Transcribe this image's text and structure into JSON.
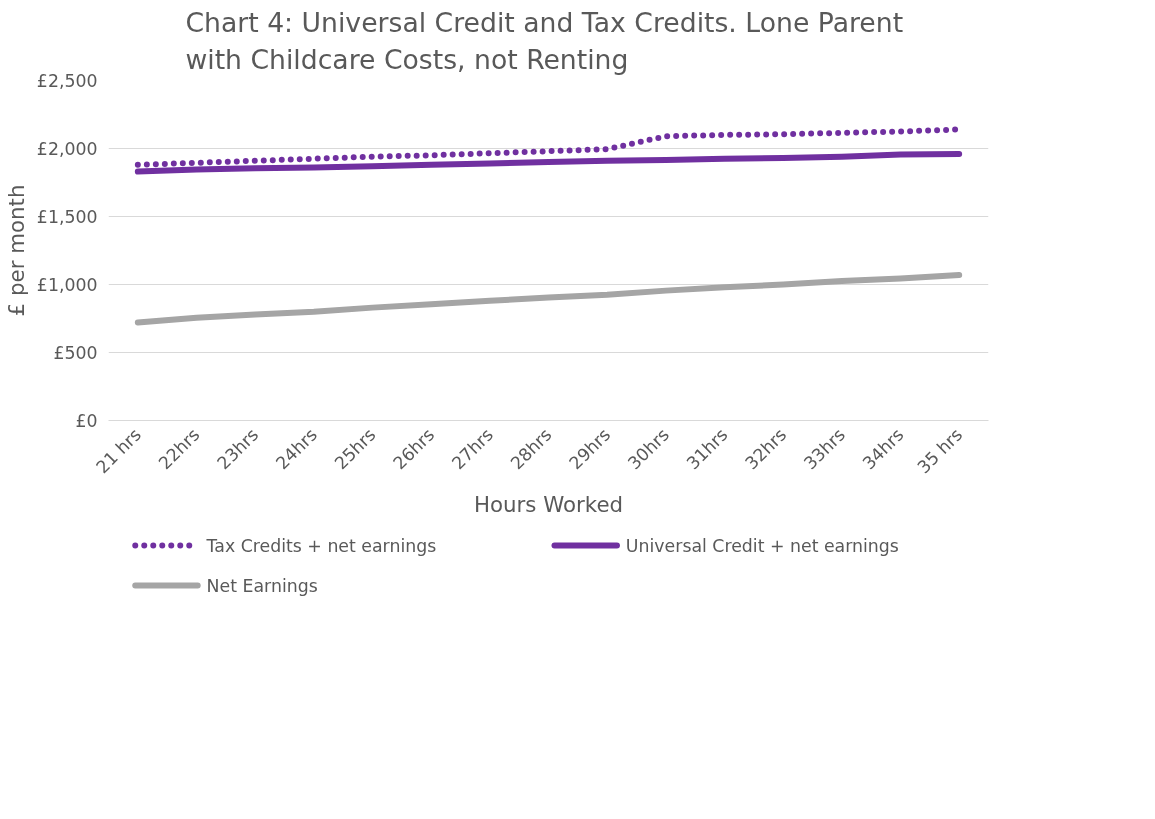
{
  "chart_data": {
    "type": "line",
    "title": "Chart 4: Universal Credit and Tax Credits.  Lone Parent\nwith Childcare Costs, not Renting",
    "xlabel": "Hours Worked",
    "ylabel": "£ per month",
    "categories": [
      "21 hrs",
      "22hrs",
      "23hrs",
      "24hrs",
      "25hrs",
      "26hrs",
      "27hrs",
      "28hrs",
      "29hrs",
      "30hrs",
      "31hrs",
      "32hrs",
      "33hrs",
      "34hrs",
      "35 hrs"
    ],
    "series": [
      {
        "name": "Tax Credits + net earnings",
        "color": "#7030a0",
        "line_style": "dotted",
        "values": [
          1880,
          1895,
          1910,
          1925,
          1940,
          1950,
          1965,
          1980,
          1995,
          2090,
          2100,
          2105,
          2115,
          2125,
          2140
        ]
      },
      {
        "name": "Universal Credit + net earnings",
        "color": "#7030a0",
        "line_style": "solid",
        "values": [
          1830,
          1845,
          1855,
          1860,
          1870,
          1880,
          1890,
          1900,
          1910,
          1915,
          1925,
          1930,
          1940,
          1955,
          1960
        ]
      },
      {
        "name": "Net Earnings",
        "color": "#a5a5a5",
        "line_style": "solid",
        "values": [
          720,
          755,
          780,
          800,
          830,
          855,
          880,
          905,
          925,
          955,
          980,
          1000,
          1025,
          1045,
          1070
        ]
      }
    ],
    "ylim": [
      0,
      2500
    ],
    "yticks": [
      {
        "value": 0,
        "label": "£0"
      },
      {
        "value": 500,
        "label": "£500"
      },
      {
        "value": 1000,
        "label": "£1,000"
      },
      {
        "value": 1500,
        "label": "£1,500"
      },
      {
        "value": 2000,
        "label": "£2,000"
      },
      {
        "value": 2500,
        "label": "£2,500"
      }
    ],
    "grid": "y",
    "legend": "bottom",
    "marker": "none"
  }
}
